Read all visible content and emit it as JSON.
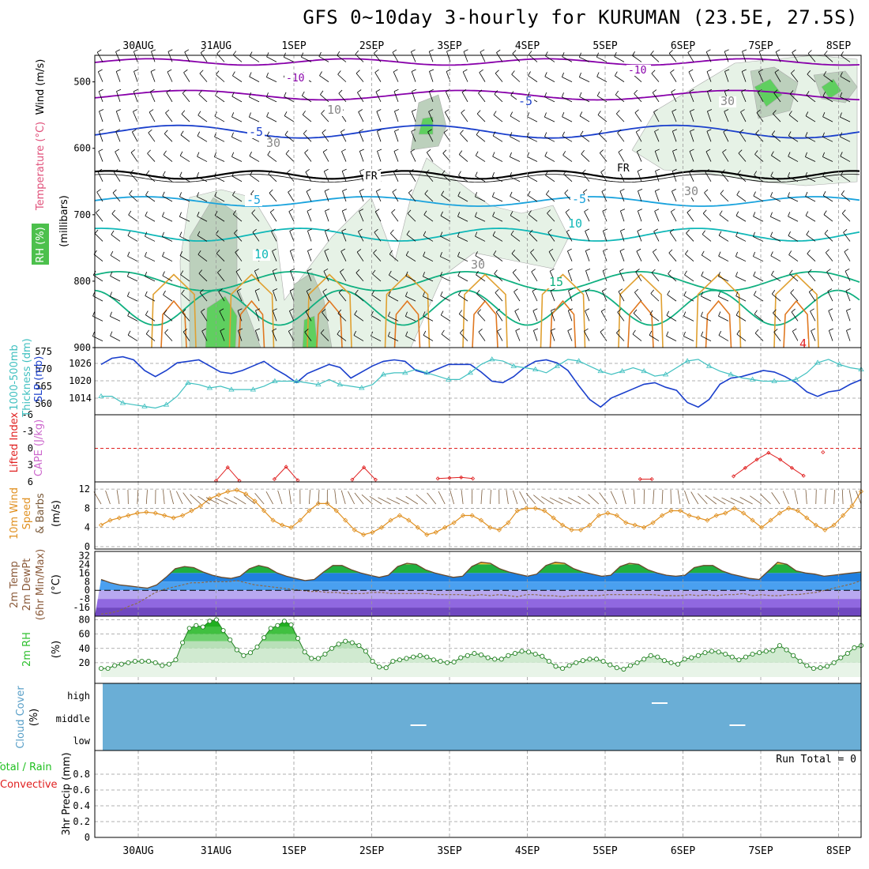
{
  "title": "GFS 0~10day 3-hourly for KURUMAN (23.5E, 27.5S)",
  "colors": {
    "temp_m10": "#8800aa",
    "temp_m5": "#1a3fcc",
    "temp_5": "#1aa3dd",
    "temp_10": "#10b8b8",
    "temp_15": "#10b080",
    "temp_warm": "#e0a030",
    "temp_hot": "#e07820",
    "freezing": "#000000",
    "rh_light": "#dff0df",
    "rh_mid": "#b5ccb5",
    "rh_dark": "#4cc04c",
    "slp": "#1a3fcc",
    "thickness": "#40c0c0",
    "lifted_index": "#e02020",
    "cape": "#cc66cc",
    "wind_speed": "#e09020",
    "wind_barb": "#7a5a3a",
    "temp_fill_hot": "#f0a020",
    "temp_fill_green": "#20a040",
    "temp_fill_blue": "#2080e0",
    "temp_fill_purple": "#9060e0",
    "dewpoint": "#8b6a4a",
    "rh_green": "#30c030",
    "cloud_bg": "#6aaed6",
    "precip_total": "#20c020",
    "precip_conv": "#e02020"
  },
  "dates": [
    "30AUG",
    "31AUG",
    "1SEP",
    "2SEP",
    "3SEP",
    "4SEP",
    "5SEP",
    "6SEP",
    "7SEP",
    "8SEP"
  ],
  "panels": {
    "upper": {
      "ylabel_wind": "Wind (m/s)",
      "ylabel_temp": "Temperature (°C)",
      "ylabel_rh": "RH (%)",
      "ylabel_mb": "(millibars)",
      "ticks": [
        "500",
        "600",
        "700",
        "800",
        "900"
      ],
      "labels": [
        "-10",
        "-10",
        "-5",
        "-5",
        "-5",
        "-5",
        "10",
        "15",
        "FR",
        "FR",
        "10",
        "10",
        "30",
        "30",
        "30",
        "30",
        "4"
      ]
    },
    "slp": {
      "ylabel_a": "1000-500mb",
      "ylabel_b": "Thickness (dm)",
      "ylabel_c": "SLP (mb)",
      "ticks_left": [
        "575",
        "570",
        "565",
        "560"
      ],
      "ticks_right": [
        "1026",
        "1020",
        "1014"
      ]
    },
    "li": {
      "ylabel_a": "Lifted Index",
      "ylabel_b": "CAPE (J/kg)",
      "ticks": [
        "-6",
        "-3",
        "0",
        "3",
        "6"
      ]
    },
    "wind": {
      "ylabel_a": "10m Wind",
      "ylabel_b": "Speed",
      "ylabel_c": "& Barbs",
      "ylabel_d": "(m/s)",
      "ticks": [
        "12",
        "8",
        "4",
        "0"
      ]
    },
    "temp": {
      "ylabel_a": "2m Temp",
      "ylabel_b": "2m DewPt",
      "ylabel_c": "(6hr Min/Max)",
      "ylabel_d": "(°C)",
      "ticks": [
        "32",
        "24",
        "16",
        "8",
        "0",
        "-8",
        "-16"
      ]
    },
    "rh": {
      "ylabel_a": "2m RH",
      "ylabel_b": "(%)",
      "ticks": [
        "80",
        "60",
        "40",
        "20"
      ]
    },
    "cloud": {
      "ylabel_a": "Cloud Cover",
      "ylabel_b": "(%)",
      "levels": [
        "high",
        "middle",
        "low"
      ]
    },
    "precip": {
      "ylabel_a": "Total / Rain",
      "ylabel_b": "Convective",
      "ylabel_c": "3hr Precip (mm)",
      "ticks": [
        "0.8",
        "0.6",
        "0.4",
        "0.2",
        "0"
      ],
      "run_total": "Run Total = 0"
    }
  },
  "chart_data": [
    {
      "type": "line",
      "name": "slp_thickness",
      "series": [
        {
          "name": "SLP (mb)",
          "values": [
            1024.5,
            1026.5,
            1027,
            1026,
            1022.5,
            1020.5,
            1022.5,
            1025,
            1025.5,
            1026,
            1024,
            1022,
            1021.5,
            1022.5,
            1024,
            1025.5,
            1023,
            1021,
            1018.5,
            1021.5,
            1023,
            1024.5,
            1023.5,
            1020,
            1022,
            1024,
            1025.5,
            1026,
            1025.5,
            1022.5,
            1021.5,
            1023,
            1024.5,
            1024.5,
            1024.5,
            1022,
            1019,
            1018.5,
            1020.5,
            1023.5,
            1025.5,
            1026,
            1025,
            1022.5,
            1017.5,
            1013,
            1010.5,
            1013.5,
            1015,
            1016.5,
            1018,
            1018.5,
            1017,
            1016,
            1012,
            1010.5,
            1013,
            1018,
            1020,
            1020.5,
            1021.5,
            1022.5,
            1022,
            1020.5,
            1018.5,
            1015.5,
            1014,
            1015.5,
            1016,
            1018,
            1019.5
          ],
          "range": [
            1008,
            1030
          ]
        },
        {
          "name": "1000-500mb Thickness (dm)",
          "values": [
            561.5,
            561.5,
            559.5,
            559,
            558.5,
            558,
            559,
            561.5,
            565.5,
            565,
            564,
            564.5,
            563.5,
            563.5,
            563.5,
            564.5,
            566,
            566,
            566,
            565.5,
            565,
            566.5,
            565,
            564.5,
            564,
            565,
            568,
            568.5,
            568.5,
            569.5,
            568.5,
            567.5,
            566.5,
            566.5,
            568.5,
            571,
            572.5,
            572,
            570.5,
            570,
            569.5,
            568.5,
            570.5,
            572.5,
            572,
            570.5,
            569,
            568,
            569,
            570,
            569,
            567.5,
            568,
            570,
            572,
            572.5,
            570.5,
            569,
            568,
            567,
            566.5,
            566,
            566,
            566,
            566.5,
            568.5,
            571.5,
            572.5,
            571,
            570,
            569.5
          ],
          "range": [
            556,
            576
          ]
        }
      ]
    },
    {
      "type": "line",
      "name": "lifted_index",
      "series": [
        {
          "name": "Lifted Index",
          "x_days": [
            1.0,
            1.15,
            1.3,
            1.75,
            1.9,
            2.05,
            2.75,
            2.9,
            3.05,
            3.85,
            4.0,
            4.15,
            4.3,
            6.45,
            6.6,
            7.65,
            7.8,
            7.95,
            8.1,
            8.25,
            8.4,
            8.55,
            8.8
          ],
          "values": [
            5.8,
            3.4,
            5.8,
            5.5,
            3.3,
            5.7,
            5.6,
            3.4,
            5.6,
            5.4,
            5.3,
            5.2,
            5.4,
            5.5,
            5.5,
            5.0,
            3.5,
            2.0,
            0.8,
            2.0,
            3.5,
            4.9,
            0.7
          ]
        }
      ]
    },
    {
      "type": "line",
      "name": "wind_speed",
      "series": [
        {
          "name": "10m Wind Speed (m/s)",
          "values": [
            4.5,
            5.5,
            6.0,
            6.5,
            7.0,
            7.2,
            7.0,
            6.5,
            6.0,
            6.5,
            7.5,
            8.5,
            10.0,
            10.8,
            11.5,
            11.8,
            11.0,
            9.5,
            7.5,
            5.5,
            4.5,
            4.0,
            5.5,
            7.5,
            9.0,
            9.0,
            7.5,
            5.5,
            3.5,
            2.5,
            3.0,
            4.0,
            5.5,
            6.5,
            5.5,
            4.0,
            2.5,
            3.0,
            4.0,
            5.0,
            6.5,
            6.5,
            5.5,
            4.0,
            3.5,
            5.0,
            7.5,
            8.0,
            8.0,
            7.5,
            6.0,
            4.5,
            3.5,
            3.5,
            4.5,
            6.5,
            7.0,
            6.5,
            5.0,
            4.5,
            4.0,
            5.0,
            6.5,
            7.5,
            7.5,
            6.5,
            6.0,
            5.5,
            6.5,
            7.0,
            8.0,
            7.0,
            5.5,
            4.0,
            5.5,
            7.0,
            8.0,
            7.5,
            6.0,
            4.5,
            3.5,
            4.5,
            6.5,
            8.5,
            11.5
          ],
          "range": [
            0,
            14
          ]
        }
      ]
    },
    {
      "type": "area",
      "name": "temperature",
      "series": [
        {
          "name": "2m Temp (°C)",
          "values": [
            10,
            7,
            5,
            4,
            3,
            2,
            5,
            12,
            20,
            22,
            21,
            17,
            14,
            12,
            11,
            13,
            20,
            23,
            21,
            16,
            13,
            11,
            9,
            10,
            17,
            23,
            23,
            19,
            16,
            14,
            12,
            14,
            22,
            25,
            24,
            19,
            16,
            14,
            12,
            13,
            22,
            26,
            25,
            20,
            17,
            15,
            13,
            15,
            23,
            26,
            25,
            20,
            17,
            15,
            13,
            14,
            22,
            25,
            24,
            19,
            16,
            14,
            13,
            14,
            21,
            23,
            23,
            18,
            15,
            13,
            11,
            10,
            18,
            26,
            24,
            18,
            16,
            15,
            13,
            14,
            15,
            16,
            17
          ],
          "range": [
            -24,
            36
          ]
        },
        {
          "name": "2m DewPt (°C)",
          "values": [
            -22,
            -21,
            -19,
            -15,
            -12,
            -7,
            -2,
            1,
            3,
            5,
            7,
            7,
            8,
            8,
            8,
            9,
            7,
            5,
            4,
            3,
            2,
            1,
            0,
            -1,
            -1,
            -2,
            -2,
            -3,
            -3,
            -3,
            -2,
            -2,
            -3,
            -3,
            -3,
            -3,
            -3,
            -4,
            -4,
            -4,
            -4,
            -5,
            -4,
            -5,
            -4,
            -5,
            -6,
            -4,
            -4,
            -5,
            -5,
            -6,
            -5,
            -5,
            -5,
            -5,
            -4,
            -4,
            -4,
            -4,
            -4,
            -4,
            -5,
            -5,
            -5,
            -4,
            -5,
            -4,
            -5,
            -4,
            -4,
            -3,
            -5,
            -4,
            -5,
            -5,
            -4,
            -4,
            -3,
            -2,
            0,
            2,
            4,
            6,
            9
          ],
          "range": [
            -24,
            36
          ]
        }
      ]
    },
    {
      "type": "area",
      "name": "relative_humidity",
      "series": [
        {
          "name": "2m RH (%)",
          "values": [
            12,
            12,
            16,
            18,
            20,
            22,
            22,
            22,
            20,
            16,
            18,
            24,
            48,
            68,
            72,
            70,
            78,
            80,
            65,
            52,
            38,
            30,
            34,
            42,
            55,
            68,
            72,
            78,
            73,
            54,
            35,
            26,
            26,
            32,
            40,
            46,
            50,
            48,
            44,
            36,
            22,
            14,
            13,
            22,
            24,
            26,
            28,
            30,
            28,
            24,
            22,
            20,
            21,
            27,
            30,
            33,
            31,
            27,
            25,
            25,
            30,
            33,
            36,
            35,
            32,
            29,
            22,
            15,
            12,
            16,
            20,
            23,
            25,
            25,
            22,
            17,
            13,
            11,
            16,
            20,
            25,
            30,
            28,
            23,
            20,
            18,
            25,
            27,
            30,
            34,
            36,
            35,
            32,
            28,
            24,
            28,
            32,
            34,
            36,
            37,
            44,
            38,
            30,
            22,
            16,
            12,
            13,
            15,
            20,
            27,
            33,
            41,
            44
          ]
        }
      ]
    },
    {
      "type": "table",
      "name": "cloud_cover",
      "series": [
        {
          "name": "middle",
          "x_days": [
            3.6
          ],
          "values": [
            1
          ]
        },
        {
          "name": "high",
          "x_days": [
            6.7
          ],
          "values": [
            1
          ]
        },
        {
          "name": "middle",
          "x_days": [
            7.7
          ],
          "values": [
            1
          ]
        }
      ]
    },
    {
      "type": "bar",
      "name": "precipitation",
      "xlabel": "",
      "ylabel": "3hr Precip (mm)",
      "ylim": [
        0,
        1
      ],
      "values": []
    }
  ]
}
